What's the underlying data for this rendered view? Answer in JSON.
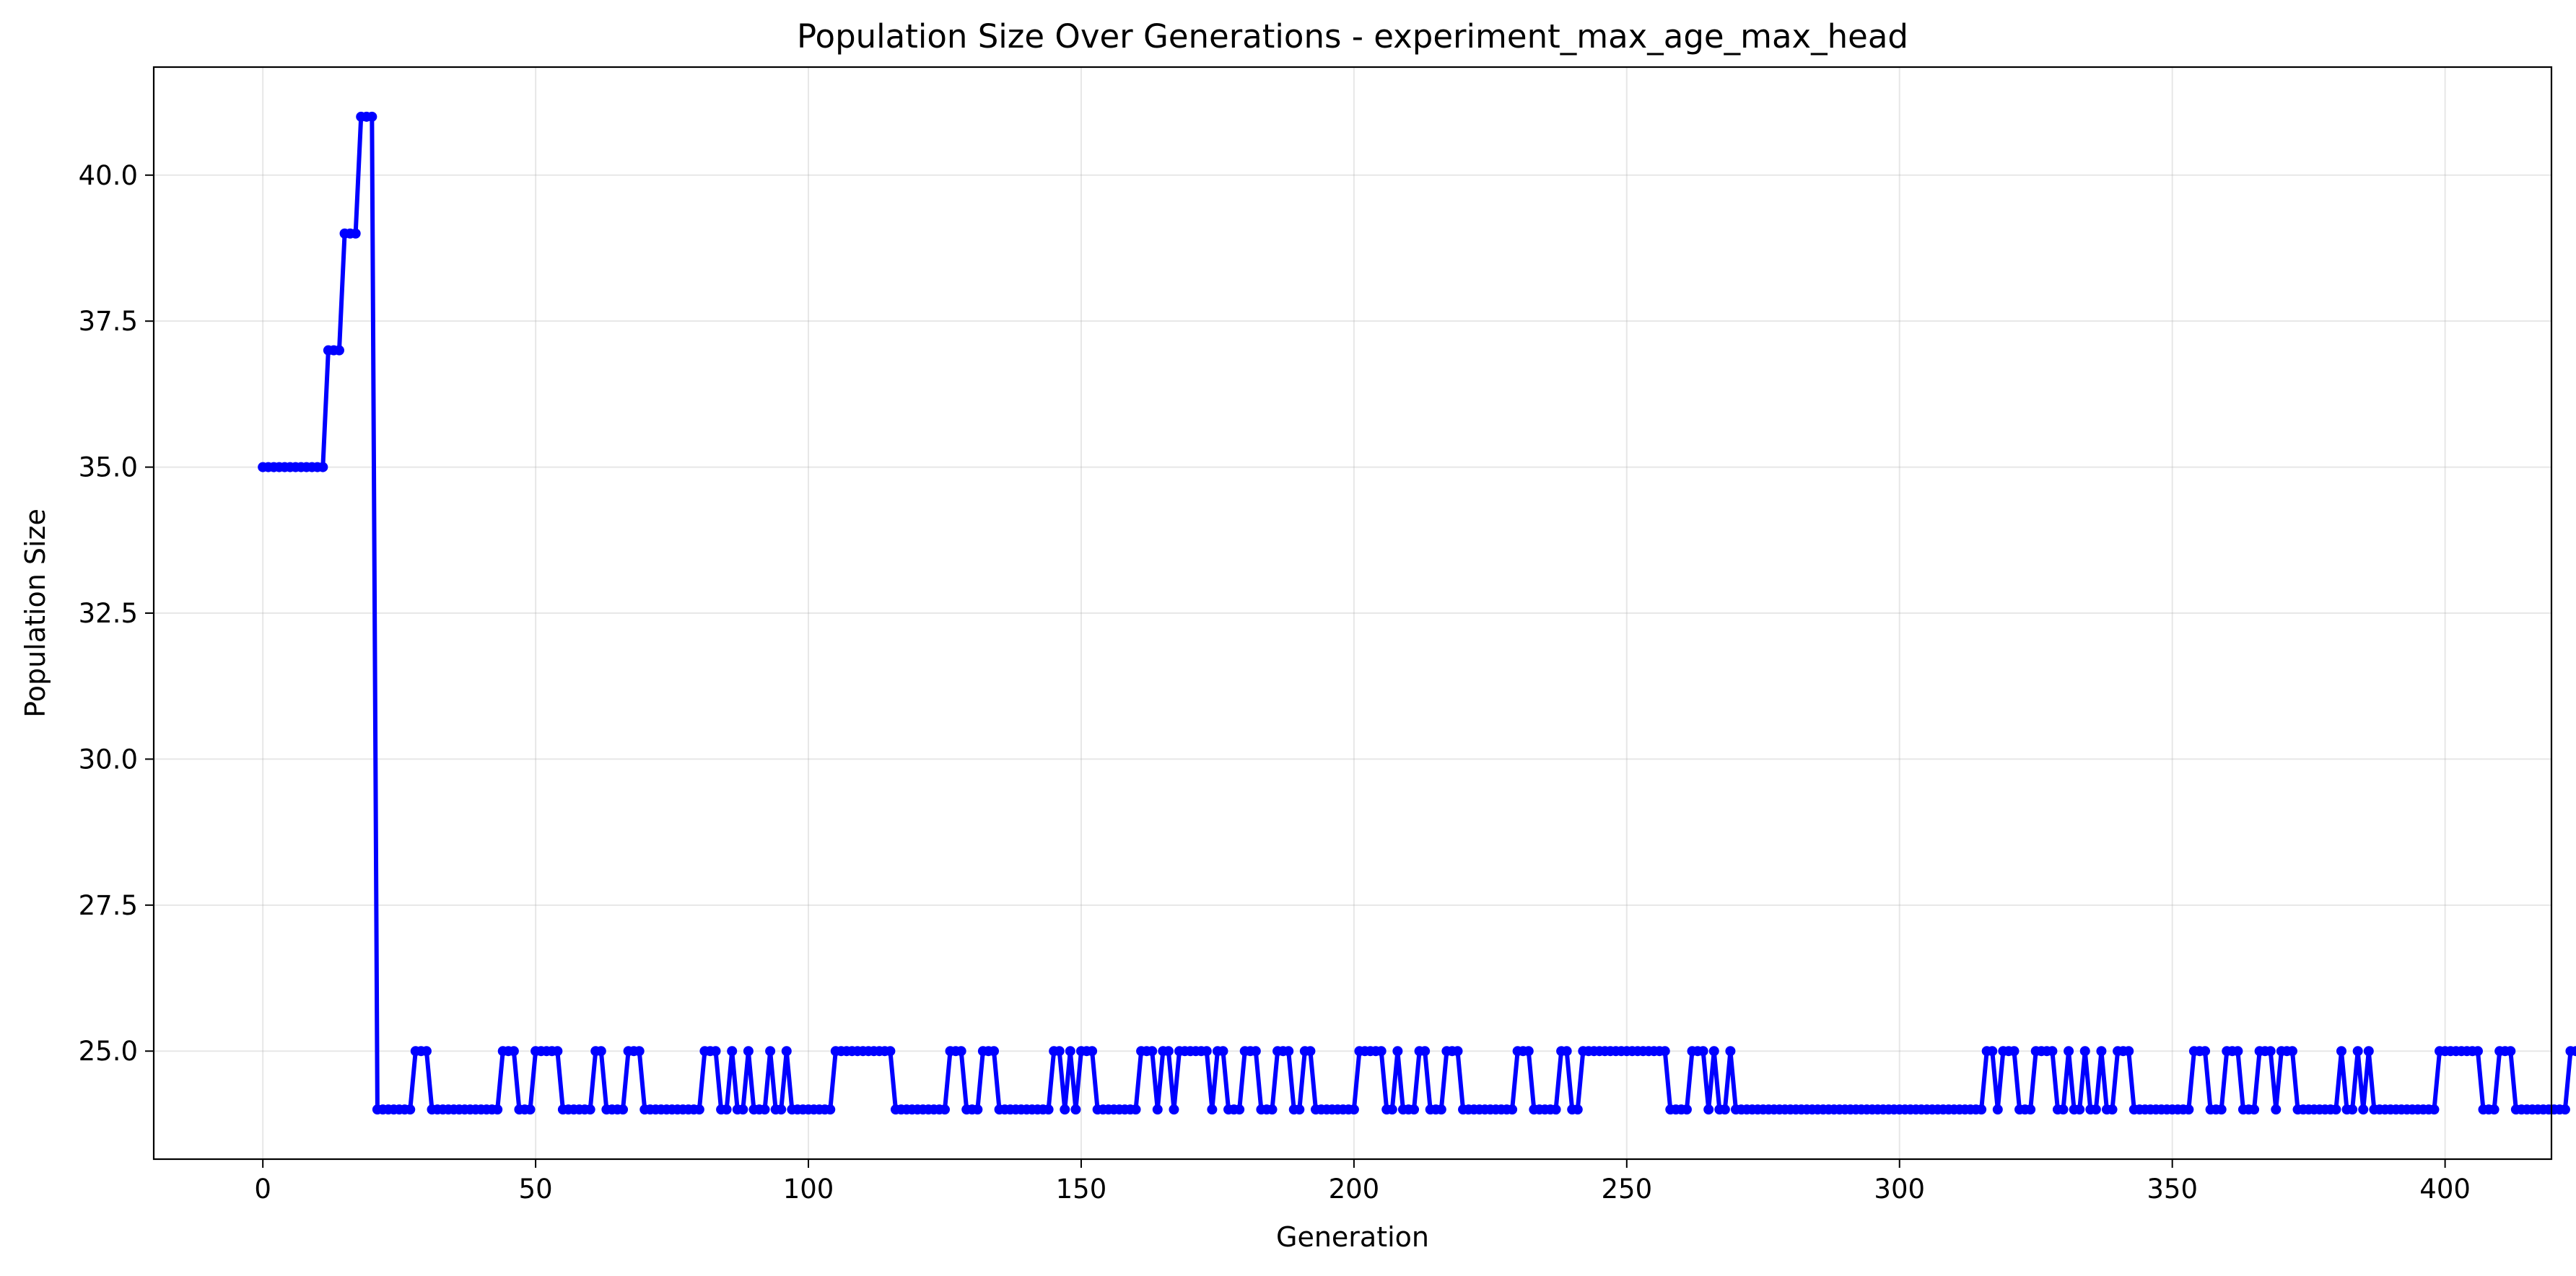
{
  "chart_data": {
    "type": "line",
    "title": "Population Size Over Generations - experiment_max_age_max_head",
    "xlabel": "Generation",
    "ylabel": "Population Size",
    "xlim": [
      -20,
      419.5
    ],
    "ylim": [
      23.15,
      41.85
    ],
    "xticks": [
      0,
      50,
      100,
      150,
      200,
      250,
      300,
      350,
      400
    ],
    "yticks": [
      25.0,
      27.5,
      30.0,
      32.5,
      35.0,
      37.5,
      40.0
    ],
    "ytick_labels": [
      "25.0",
      "27.5",
      "30.0",
      "32.5",
      "35.0",
      "37.5",
      "40.0"
    ],
    "grid": true,
    "line_color": "#0000ff",
    "series": [
      {
        "x_start": 0,
        "values": [
          35,
          35,
          35,
          35,
          35,
          35,
          35,
          35,
          35,
          35,
          35,
          35,
          37,
          37,
          37,
          39,
          39,
          39,
          41,
          41,
          41,
          24,
          24,
          24,
          24,
          24,
          24,
          24,
          25,
          25,
          25,
          24,
          24,
          24,
          24,
          24,
          24,
          24,
          24,
          24,
          24,
          24,
          24,
          24,
          25,
          25,
          25,
          24,
          24,
          24,
          25,
          25,
          25,
          25,
          25,
          24,
          24,
          24,
          24,
          24,
          24,
          25,
          25,
          24,
          24,
          24,
          24,
          25,
          25,
          25,
          24,
          24,
          24,
          24,
          24,
          24,
          24,
          24,
          24,
          24,
          24,
          25,
          25,
          25,
          24,
          24,
          25,
          24,
          24,
          25,
          24,
          24,
          24,
          25,
          24,
          24,
          25,
          24,
          24,
          24,
          24,
          24,
          24,
          24,
          24,
          25,
          25,
          25,
          25,
          25,
          25,
          25,
          25,
          25,
          25,
          25,
          24,
          24,
          24,
          24,
          24,
          24,
          24,
          24,
          24,
          24,
          25,
          25,
          25,
          24,
          24,
          24,
          25,
          25,
          25,
          24,
          24,
          24,
          24,
          24,
          24,
          24,
          24,
          24,
          24,
          25,
          25,
          24,
          25,
          24,
          25,
          25,
          25,
          24,
          24,
          24,
          24,
          24,
          24,
          24,
          24,
          25,
          25,
          25,
          24,
          25,
          25,
          24,
          25,
          25,
          25,
          25,
          25,
          25,
          24,
          25,
          25,
          24,
          24,
          24,
          25,
          25,
          25,
          24,
          24,
          24,
          25,
          25,
          25,
          24,
          24,
          25,
          25,
          24,
          24,
          24,
          24,
          24,
          24,
          24,
          24,
          25,
          25,
          25,
          25,
          25,
          24,
          24,
          25,
          24,
          24,
          24,
          25,
          25,
          24,
          24,
          24,
          25,
          25,
          25,
          24,
          24,
          24,
          24,
          24,
          24,
          24,
          24,
          24,
          24,
          25,
          25,
          25,
          24,
          24,
          24,
          24,
          24,
          25,
          25,
          24,
          24,
          25,
          25,
          25,
          25,
          25,
          25,
          25,
          25,
          25,
          25,
          25,
          25,
          25,
          25,
          25,
          25,
          24,
          24,
          24,
          24,
          25,
          25,
          25,
          24,
          25,
          24,
          24,
          25,
          24,
          24,
          24,
          24,
          24,
          24,
          24,
          24,
          24,
          24,
          24,
          24,
          24,
          24,
          24,
          24,
          24,
          24,
          24,
          24,
          24,
          24,
          24,
          24,
          24,
          24,
          24,
          24,
          24,
          24,
          24,
          24,
          24,
          24,
          24,
          24,
          24,
          24,
          24,
          24,
          24,
          24,
          24,
          24,
          24,
          24,
          25,
          25,
          24,
          25,
          25,
          25,
          24,
          24,
          24,
          25,
          25,
          25,
          25,
          24,
          24,
          25,
          24,
          24,
          25,
          24,
          24,
          25,
          24,
          24,
          25,
          25,
          25,
          24,
          24,
          24,
          24,
          24,
          24,
          24,
          24,
          24,
          24,
          24,
          25,
          25,
          25,
          24,
          24,
          24,
          25,
          25,
          25,
          24,
          24,
          24,
          25,
          25,
          25,
          24,
          25,
          25,
          25,
          24,
          24,
          24,
          24,
          24,
          24,
          24,
          24,
          25,
          24,
          24,
          25,
          24,
          25,
          24,
          24,
          24,
          24,
          24,
          24,
          24,
          24,
          24,
          24,
          24,
          24,
          25,
          25,
          25,
          25,
          25,
          25,
          25,
          25,
          24,
          24,
          24,
          25,
          25,
          25,
          24,
          24,
          24,
          24,
          24,
          24,
          24,
          24,
          24,
          24,
          25,
          25
        ]
      }
    ]
  }
}
